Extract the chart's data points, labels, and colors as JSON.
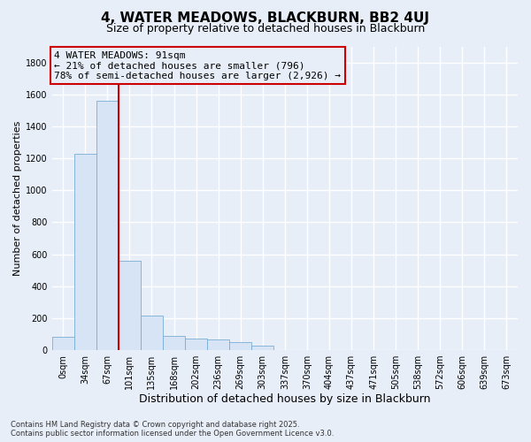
{
  "title": "4, WATER MEADOWS, BLACKBURN, BB2 4UJ",
  "subtitle": "Size of property relative to detached houses in Blackburn",
  "xlabel": "Distribution of detached houses by size in Blackburn",
  "ylabel": "Number of detached properties",
  "bar_color": "#d6e4f5",
  "bar_edge_color": "#7aadd4",
  "categories": [
    "0sqm",
    "34sqm",
    "67sqm",
    "101sqm",
    "135sqm",
    "168sqm",
    "202sqm",
    "236sqm",
    "269sqm",
    "303sqm",
    "337sqm",
    "370sqm",
    "404sqm",
    "437sqm",
    "471sqm",
    "505sqm",
    "538sqm",
    "572sqm",
    "606sqm",
    "639sqm",
    "673sqm"
  ],
  "values": [
    85,
    1230,
    1560,
    560,
    215,
    90,
    70,
    65,
    50,
    30,
    0,
    0,
    0,
    0,
    0,
    0,
    0,
    0,
    0,
    0,
    0
  ],
  "vline_bin": 2,
  "annotation_text": "4 WATER MEADOWS: 91sqm\n← 21% of detached houses are smaller (796)\n78% of semi-detached houses are larger (2,926) →",
  "ylim_max": 1900,
  "yticks": [
    0,
    200,
    400,
    600,
    800,
    1000,
    1200,
    1400,
    1600,
    1800
  ],
  "footer_line1": "Contains HM Land Registry data © Crown copyright and database right 2025.",
  "footer_line2": "Contains public sector information licensed under the Open Government Licence v3.0.",
  "bg_color": "#e8eef8",
  "grid_color": "#ffffff",
  "vline_color": "#cc0000",
  "box_edge_color": "#cc0000",
  "title_fontsize": 11,
  "subtitle_fontsize": 9,
  "xlabel_fontsize": 9,
  "ylabel_fontsize": 8,
  "tick_fontsize": 7,
  "annotation_fontsize": 8,
  "footer_fontsize": 6
}
